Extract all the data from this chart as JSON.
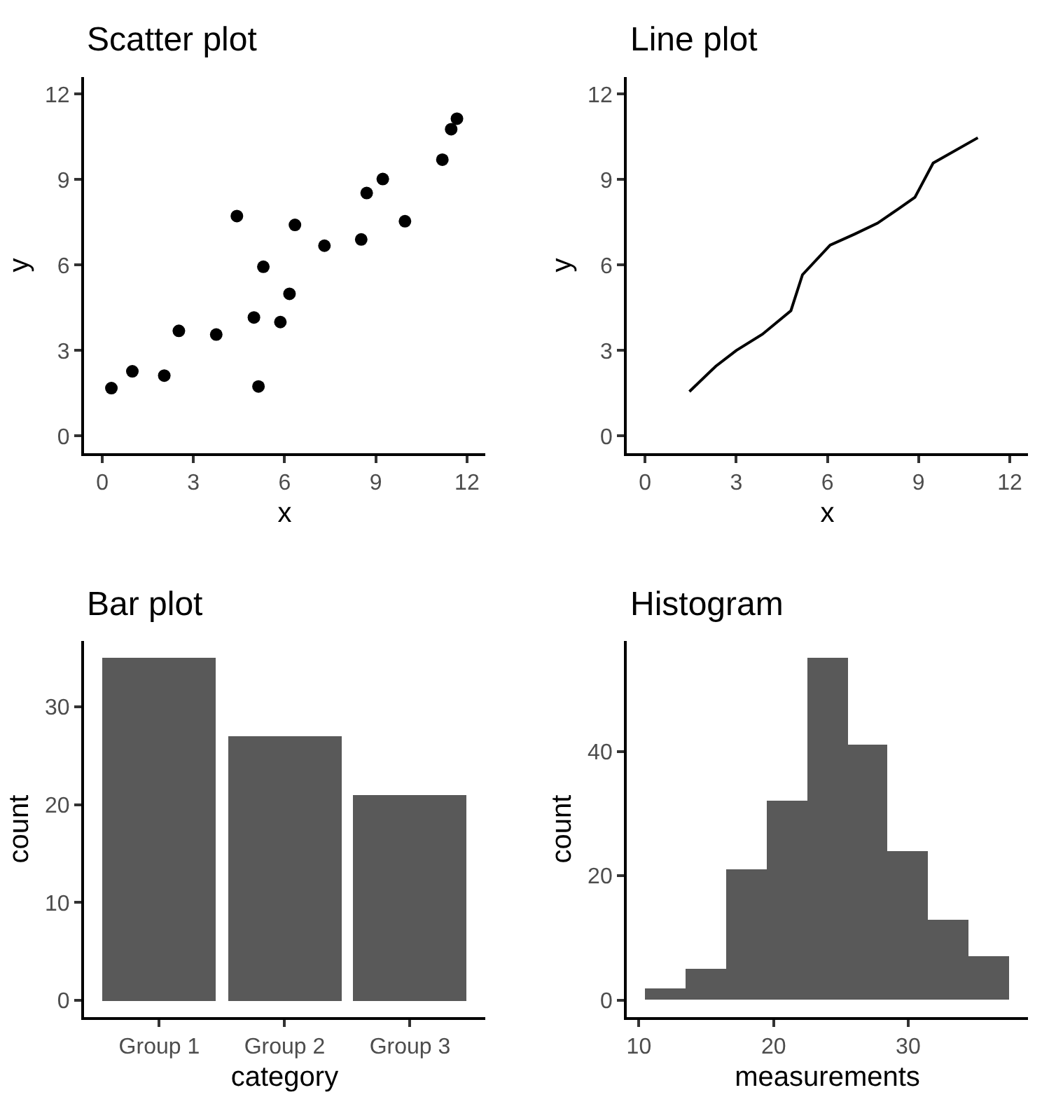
{
  "chart_data": [
    {
      "type": "scatter",
      "title": "Scatter plot",
      "xlabel": "x",
      "ylabel": "y",
      "marker": "circle",
      "x": [
        0.3,
        0.99,
        2.04,
        2.52,
        3.75,
        4.43,
        4.99,
        5.14,
        5.3,
        5.86,
        6.16,
        6.34,
        7.31,
        8.52,
        8.7,
        9.23,
        9.96,
        11.19,
        11.48,
        11.67
      ],
      "series": [
        {
          "color": "#000000",
          "values": [
            1.68,
            2.27,
            2.12,
            3.69,
            3.56,
            7.72,
            4.16,
            1.74,
            5.94,
            4.0,
            4.99,
            7.41,
            6.68,
            6.9,
            8.53,
            9.02,
            7.54,
            9.7,
            10.77,
            11.14
          ]
        }
      ],
      "xlim": [
        -0.6,
        12.6
      ],
      "ylim": [
        -0.6,
        12.6
      ],
      "xticks": [
        0,
        3,
        6,
        9,
        12
      ],
      "yticks": [
        0,
        3,
        6,
        9,
        12
      ]
    },
    {
      "type": "line",
      "title": "Line plot",
      "xlabel": "x",
      "ylabel": "y",
      "line_style": "solid",
      "x": [
        1.46,
        2.33,
        3.0,
        3.86,
        4.8,
        5.18,
        6.09,
        6.9,
        7.65,
        8.33,
        8.88,
        9.48,
        10.95
      ],
      "series": [
        {
          "color": "#000000",
          "values": [
            1.56,
            2.45,
            3.0,
            3.57,
            4.4,
            5.66,
            6.7,
            7.09,
            7.47,
            7.97,
            8.38,
            9.58,
            10.47
          ]
        }
      ],
      "xlim": [
        -0.6,
        12.6
      ],
      "ylim": [
        -0.6,
        12.6
      ],
      "xticks": [
        0,
        3,
        6,
        9,
        12
      ],
      "yticks": [
        0,
        3,
        6,
        9,
        12
      ]
    },
    {
      "type": "bar",
      "title": "Bar plot",
      "xlabel": "category",
      "ylabel": "count",
      "categories": [
        "Group 1",
        "Group 2",
        "Group 3"
      ],
      "series": [
        {
          "color": "#595959",
          "values": [
            35,
            27,
            21
          ]
        }
      ],
      "ylim": [
        -1.7,
        36.7
      ],
      "yticks": [
        0,
        10,
        20,
        30
      ]
    },
    {
      "type": "histogram",
      "title": "Histogram",
      "xlabel": "measurements",
      "ylabel": "count",
      "bins": [
        10.5,
        13.5,
        16.5,
        19.5,
        22.5,
        25.5,
        28.5,
        31.5,
        34.5,
        37.5
      ],
      "values": [
        2,
        5,
        21,
        32,
        55,
        41,
        24,
        13,
        7
      ],
      "color": "#595959",
      "xlim": [
        9.1,
        38.9
      ],
      "ylim": [
        -2.7,
        57.7
      ],
      "xticks": [
        10,
        20,
        30
      ],
      "yticks": [
        0,
        20,
        40
      ]
    }
  ]
}
